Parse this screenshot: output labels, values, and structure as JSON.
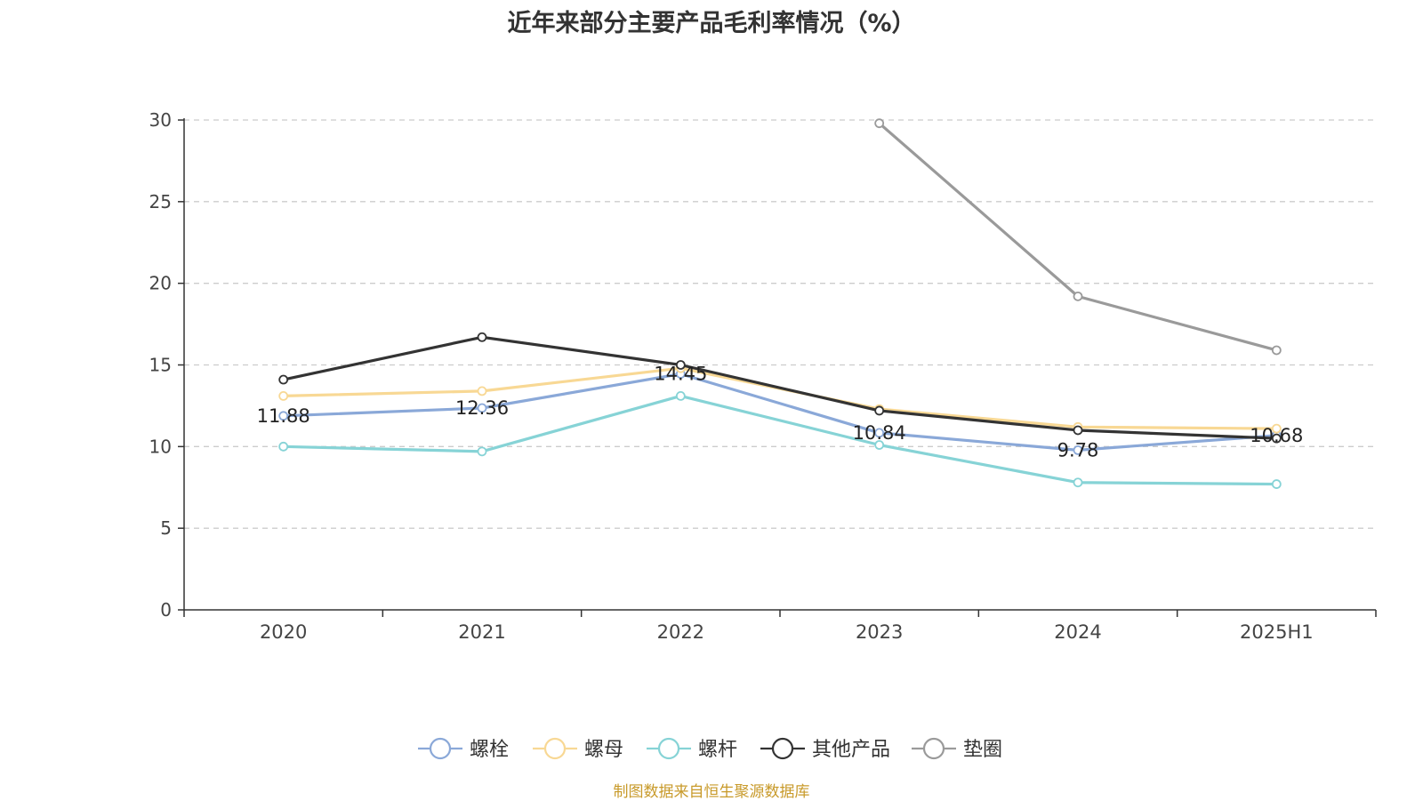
{
  "chart_data": {
    "type": "line",
    "title": "近年来部分主要产品毛利率情况（%）",
    "xlabel": "",
    "ylabel": "",
    "categories": [
      "2020",
      "2021",
      "2022",
      "2023",
      "2024",
      "2025H1"
    ],
    "ylim": [
      0,
      30
    ],
    "yticks": [
      0,
      5,
      10,
      15,
      20,
      25,
      30
    ],
    "grid": "horizontal dashed",
    "legend": "bottom-center",
    "series": [
      {
        "name": "螺栓",
        "color": "#8aa8d8",
        "values": [
          11.88,
          12.36,
          14.45,
          10.84,
          9.78,
          10.68
        ],
        "labeled": true
      },
      {
        "name": "螺母",
        "color": "#f8d894",
        "values": [
          13.1,
          13.4,
          14.8,
          12.3,
          11.2,
          11.1
        ],
        "labeled": false
      },
      {
        "name": "螺杆",
        "color": "#86d3d6",
        "values": [
          10.0,
          9.7,
          13.1,
          10.1,
          7.8,
          7.7
        ],
        "labeled": false
      },
      {
        "name": "其他产品",
        "color": "#333333",
        "values": [
          14.1,
          16.7,
          15.0,
          12.2,
          11.0,
          10.5
        ],
        "labeled": false
      },
      {
        "name": "垫圈",
        "color": "#9a9a9a",
        "values": [
          null,
          null,
          null,
          29.8,
          19.2,
          15.9
        ],
        "labeled": false
      }
    ]
  },
  "source": "制图数据来自恒生聚源数据库"
}
